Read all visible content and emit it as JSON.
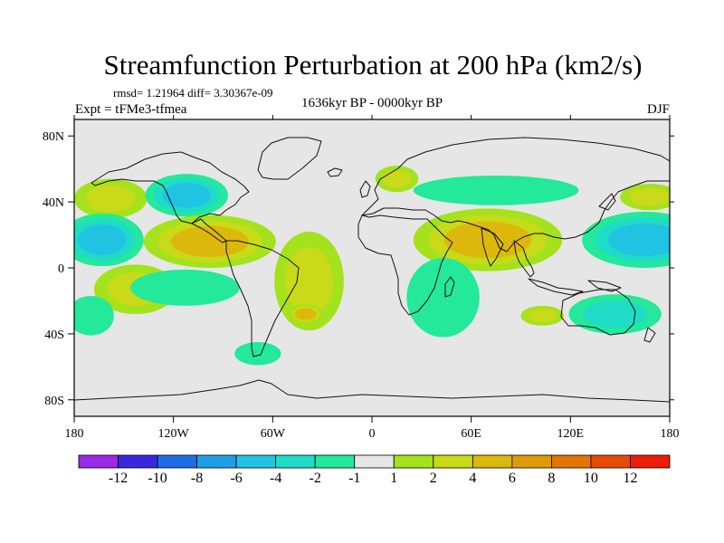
{
  "chart_data": {
    "type": "heatmap",
    "title": "Streamfunction Perturbation at 200 hPa (km2/s)",
    "stats_label": "rmsd= 1.21964 diff= 3.30367e-09",
    "left_label": "Expt = tFMe3-tfmea",
    "center_label": "1636kyr BP - 0000kyr BP",
    "right_label": "DJF",
    "x_axis": {
      "range": [
        -180,
        180
      ],
      "ticks": [
        {
          "value": -180,
          "label": "180"
        },
        {
          "value": -120,
          "label": "120W"
        },
        {
          "value": -60,
          "label": "60W"
        },
        {
          "value": 0,
          "label": "0"
        },
        {
          "value": 60,
          "label": "60E"
        },
        {
          "value": 120,
          "label": "120E"
        },
        {
          "value": 180,
          "label": "180"
        }
      ]
    },
    "y_axis": {
      "range": [
        -90,
        90
      ],
      "ticks": [
        {
          "value": 80,
          "label": "80N"
        },
        {
          "value": 40,
          "label": "40N"
        },
        {
          "value": 0,
          "label": "0"
        },
        {
          "value": -40,
          "label": "40S"
        },
        {
          "value": -80,
          "label": "80S"
        }
      ]
    },
    "colorbar": {
      "colors": [
        "#9a2ae6",
        "#3a28e0",
        "#1d6ee6",
        "#1f9ee8",
        "#21c3e3",
        "#1fdcc7",
        "#24e89a",
        "#e6e6e6",
        "#a3e21c",
        "#c8da18",
        "#dcb80c",
        "#e09a08",
        "#e47406",
        "#e64a06",
        "#ee1c08"
      ],
      "labels": [
        {
          "value": -12,
          "label": "-12"
        },
        {
          "value": -10,
          "label": "-10"
        },
        {
          "value": -8,
          "label": "-8"
        },
        {
          "value": -6,
          "label": "-6"
        },
        {
          "value": -4,
          "label": "-4"
        },
        {
          "value": -2,
          "label": "-2"
        },
        {
          "value": -1,
          "label": "-1"
        },
        {
          "value": 1,
          "label": "1"
        },
        {
          "value": 2,
          "label": "2"
        },
        {
          "value": 4,
          "label": "4"
        },
        {
          "value": 6,
          "label": "6"
        },
        {
          "value": 8,
          "label": "8"
        },
        {
          "value": 10,
          "label": "10"
        },
        {
          "value": 12,
          "label": "12"
        }
      ]
    },
    "anomaly_centers": [
      {
        "name": "ne-pacific-high",
        "lon": -158,
        "lat": 42,
        "rlon": 22,
        "rlat": 12,
        "value": 2
      },
      {
        "name": "central-pacific-low",
        "lon": -163,
        "lat": 17,
        "rlon": 25,
        "rlat": 16,
        "value": -4
      },
      {
        "name": "s-pacific-high",
        "lon": -143,
        "lat": -13,
        "rlon": 25,
        "rlat": 15,
        "value": 2
      },
      {
        "name": "far-s-pacific-low",
        "lon": -170,
        "lat": -29,
        "rlon": 14,
        "rlat": 12,
        "value": -1
      },
      {
        "name": "n-america-low",
        "lon": -112,
        "lat": 44,
        "rlon": 25,
        "rlat": 13,
        "value": -4
      },
      {
        "name": "mexico-high",
        "lon": -98,
        "lat": 16,
        "rlon": 40,
        "rlat": 16,
        "value": 4
      },
      {
        "name": "e-pacific-low",
        "lon": -113,
        "lat": -12,
        "rlon": 33,
        "rlat": 11,
        "value": -1
      },
      {
        "name": "s-atlantic-high",
        "lon": -38,
        "lat": -8,
        "rlon": 21,
        "rlat": 30,
        "value": 2
      },
      {
        "name": "argentina-high",
        "lon": -40,
        "lat": -28,
        "rlon": 11,
        "rlat": 6,
        "value": 4
      },
      {
        "name": "patagonia-low",
        "lon": -69,
        "lat": -52,
        "rlon": 14,
        "rlat": 7,
        "value": -1
      },
      {
        "name": "europe-high",
        "lon": 15,
        "lat": 54,
        "rlon": 13,
        "rlat": 8,
        "value": 2
      },
      {
        "name": "eurasia-low",
        "lon": 75,
        "lat": 47,
        "rlon": 50,
        "rlat": 9,
        "value": -1
      },
      {
        "name": "s-asia-high",
        "lon": 70,
        "lat": 17,
        "rlon": 45,
        "rlat": 19,
        "value": 4
      },
      {
        "name": "indian-ocean-low",
        "lon": 43,
        "lat": -18,
        "rlon": 22,
        "rlat": 24,
        "value": -1
      },
      {
        "name": "w-australia-high",
        "lon": 103,
        "lat": -29,
        "rlon": 13,
        "rlat": 6,
        "value": 2
      },
      {
        "name": "nw-pacific-high",
        "lon": 168,
        "lat": 43,
        "rlon": 18,
        "rlat": 8,
        "value": 2
      },
      {
        "name": "w-pacific-low",
        "lon": 165,
        "lat": 17,
        "rlon": 38,
        "rlat": 17,
        "value": -4
      },
      {
        "name": "australia-low",
        "lon": 147,
        "lat": -28,
        "rlon": 28,
        "rlat": 12,
        "value": -2
      }
    ]
  }
}
